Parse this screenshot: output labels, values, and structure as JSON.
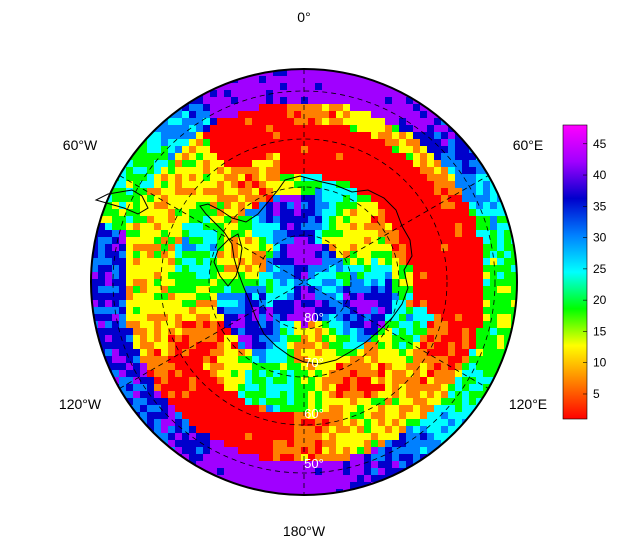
{
  "map": {
    "projection": "south-polar-stereographic",
    "longitude_labels": {
      "top": "0°",
      "upper_left": "60°W",
      "upper_right": "60°E",
      "lower_left": "120°W",
      "lower_right": "120°E",
      "bottom": "180°W"
    },
    "latitude_labels": [
      "80°",
      "70°",
      "60°",
      "50°"
    ],
    "graticule": "dashed",
    "palette": [
      "#ff0000",
      "#ff8000",
      "#ffff00",
      "#00ff00",
      "#00ffff",
      "#0000cc",
      "#a000ff",
      "#ff00ff"
    ]
  },
  "colorbar": {
    "ticks": [
      "5",
      "10",
      "15",
      "20",
      "25",
      "30",
      "35",
      "40",
      "45"
    ],
    "min": 1,
    "max": 48,
    "gradient": [
      "#ff0000",
      "#ff8000",
      "#ffff00",
      "#00ff00",
      "#00ffff",
      "#0080ff",
      "#0000cc",
      "#a000ff",
      "#ff00ff"
    ]
  }
}
